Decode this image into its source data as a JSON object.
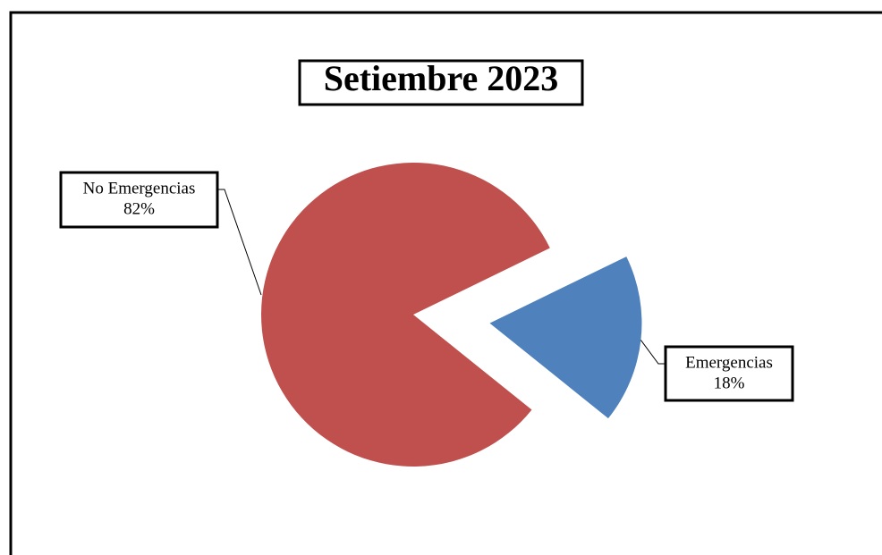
{
  "chart_data": {
    "type": "pie",
    "title": "Setiembre 2023",
    "categories": [
      "Emergencias",
      "No Emergencias"
    ],
    "values": [
      18,
      82
    ],
    "value_labels": [
      "18%",
      "82%"
    ],
    "colors": [
      "#4f81bd",
      "#c0504d"
    ]
  }
}
